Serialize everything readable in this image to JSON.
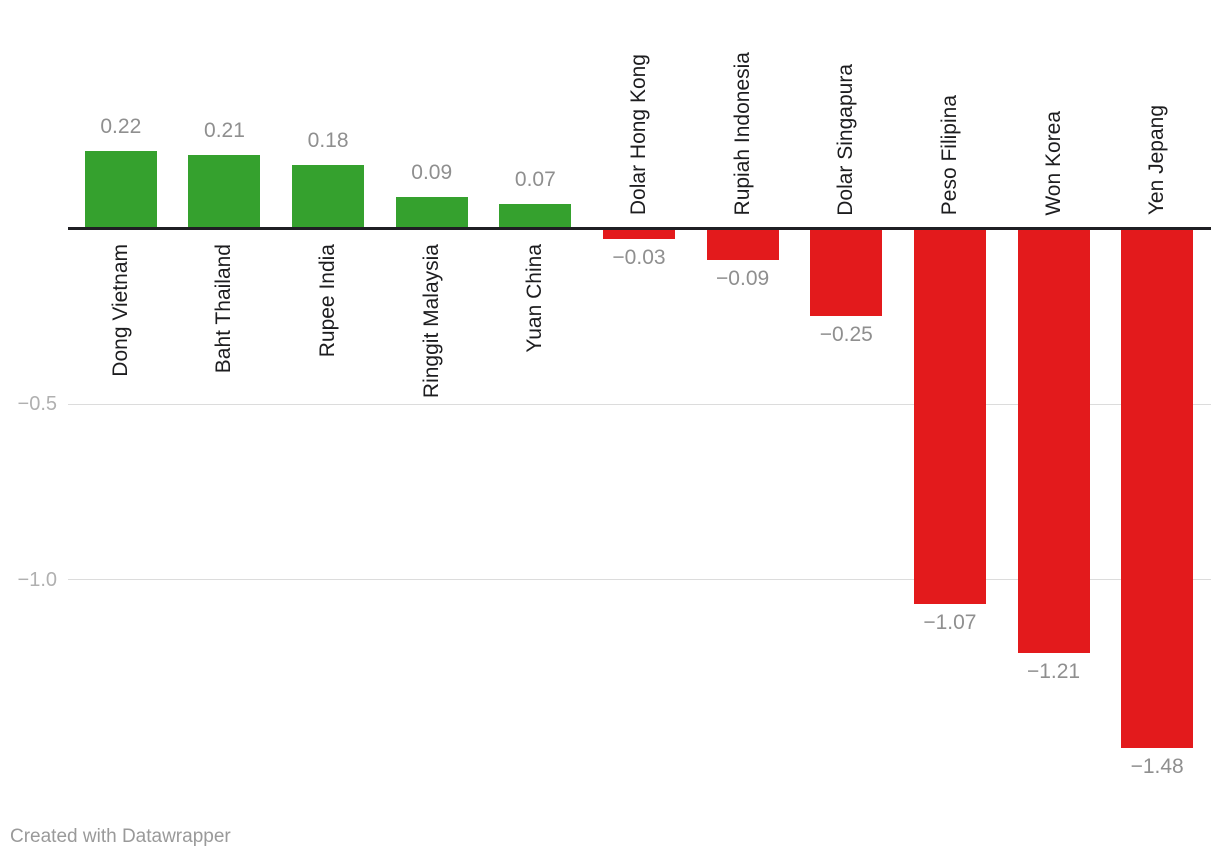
{
  "footer": {
    "credit": "Created with Datawrapper"
  },
  "chart_data": {
    "type": "bar",
    "title": "",
    "xlabel": "",
    "ylabel": "",
    "categories": [
      "Dong Vietnam",
      "Baht Thailand",
      "Rupee India",
      "Ringgit Malaysia",
      "Yuan China",
      "Dolar Hong Kong",
      "Rupiah Indonesia",
      "Dolar Singapura",
      "Peso Filipina",
      "Won Korea",
      "Yen Jepang"
    ],
    "values": [
      0.22,
      0.21,
      0.18,
      0.09,
      0.07,
      -0.03,
      -0.09,
      -0.25,
      -1.07,
      -1.21,
      -1.48
    ],
    "value_labels": [
      "0.22",
      "0.21",
      "0.18",
      "0.09",
      "0.07",
      "−0.03",
      "−0.09",
      "−0.25",
      "−1.07",
      "−1.21",
      "−1.48"
    ],
    "ylim": [
      -1.6,
      0.35
    ],
    "y_ticks": [
      {
        "value": -0.5,
        "label": "−0.5"
      },
      {
        "value": -1.0,
        "label": "−1.0"
      }
    ],
    "grid": "horizontal-below-zero",
    "legend": "none",
    "colors": {
      "positive": "#35a12e",
      "negative": "#e31a1c",
      "axis_line": "#1f1f23",
      "gridline": "#dcdcdc",
      "value_label": "#8f8f8f",
      "category_label": "#1d1d1f",
      "tick_label": "#b0b0b0"
    }
  }
}
